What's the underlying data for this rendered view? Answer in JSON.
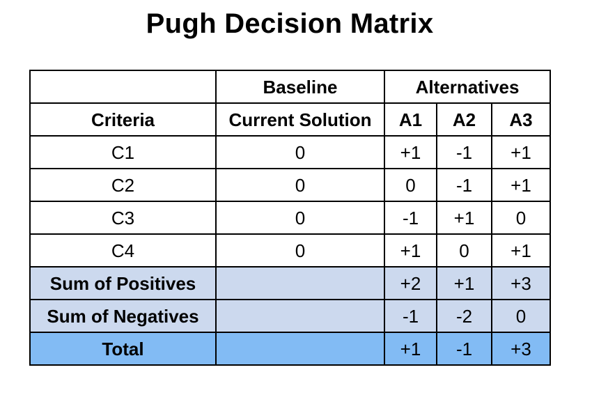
{
  "title": "Pugh Decision Matrix",
  "header": {
    "baseline_group": "Baseline",
    "alternatives_group": "Alternatives",
    "criteria_label": "Criteria",
    "current_solution_label": "Current Solution",
    "alternatives": [
      "A1",
      "A2",
      "A3"
    ]
  },
  "criteria_rows": [
    {
      "criterion": "C1",
      "baseline": "0",
      "scores": [
        "+1",
        "-1",
        "+1"
      ]
    },
    {
      "criterion": "C2",
      "baseline": "0",
      "scores": [
        "0",
        "-1",
        "+1"
      ]
    },
    {
      "criterion": "C3",
      "baseline": "0",
      "scores": [
        "-1",
        "+1",
        "0"
      ]
    },
    {
      "criterion": "C4",
      "baseline": "0",
      "scores": [
        "+1",
        "0",
        "+1"
      ]
    }
  ],
  "summary": {
    "positives_label": "Sum of Positives",
    "positives": [
      "+2",
      "+1",
      "+3"
    ],
    "negatives_label": "Sum of Negatives",
    "negatives": [
      "-1",
      "-2",
      "0"
    ],
    "total_label": "Total",
    "total": [
      "+1",
      "-1",
      "+3"
    ]
  },
  "colors": {
    "summary_row_fill": "#ccd9ee",
    "total_row_fill": "#82bbf4",
    "border": "#000000"
  }
}
